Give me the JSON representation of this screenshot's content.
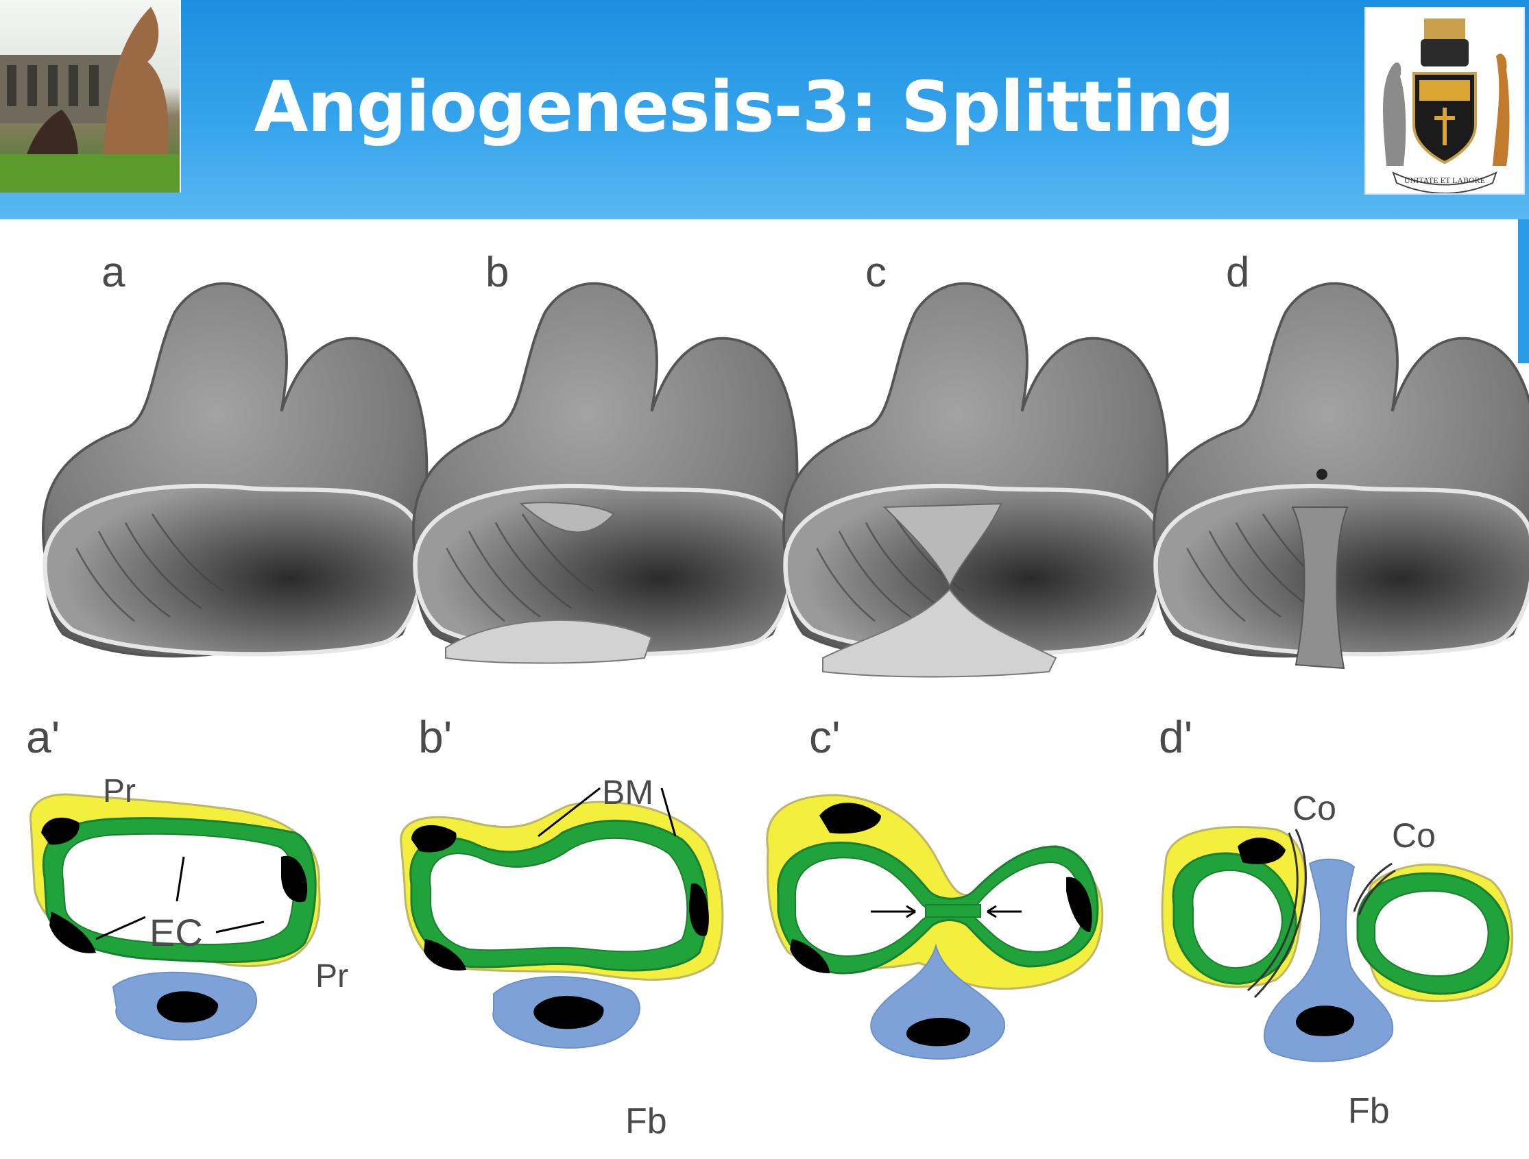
{
  "slide": {
    "title": "Angiogenesis-3: Splitting",
    "crest_motto": "UNITATE ET LABORE"
  },
  "diagram": {
    "panel_labels_top": [
      "a",
      "b",
      "c",
      "d"
    ],
    "panel_labels_bottom": [
      "a'",
      "b'",
      "c'",
      "d'"
    ],
    "annotations": {
      "pr1": "Pr",
      "pr2": "Pr",
      "ec": "EC",
      "bm": "BM",
      "fb1": "Fb",
      "co1": "Co",
      "co2": "Co",
      "fb2": "Fb"
    }
  },
  "colors": {
    "header_blue": "#2a9be6",
    "endothelium_green": "#1fa33a",
    "pericyte_yellow": "#f3ef3c",
    "fibroblast_blue": "#7ea2d8",
    "vessel_gray": "#8a8a8a"
  }
}
